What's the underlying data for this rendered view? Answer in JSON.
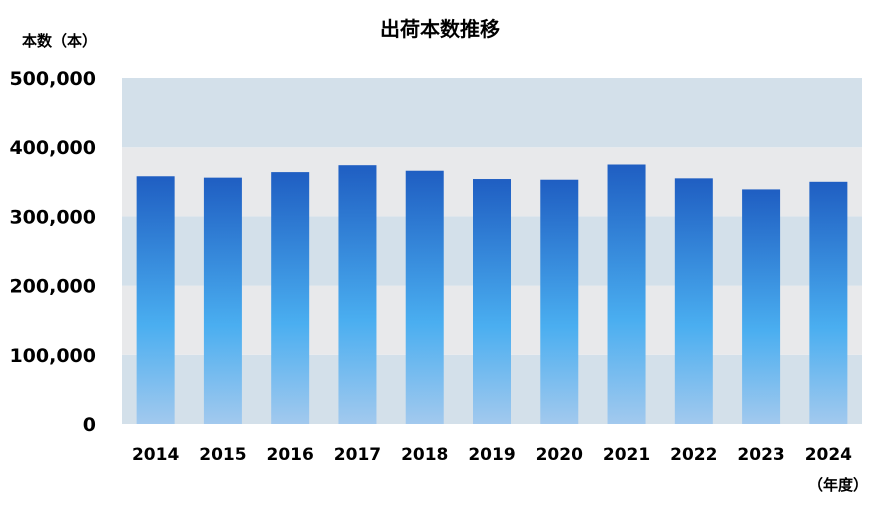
{
  "chart_data": {
    "type": "bar",
    "title": "出荷本数推移",
    "ylabel": "本数（本）",
    "xlabel": "（年度）",
    "categories": [
      "2014",
      "2015",
      "2016",
      "2017",
      "2018",
      "2019",
      "2020",
      "2021",
      "2022",
      "2023",
      "2024"
    ],
    "values": [
      358000,
      356000,
      364000,
      374000,
      366000,
      354000,
      353000,
      375000,
      355000,
      339000,
      350000
    ],
    "ylim": [
      0,
      500000
    ],
    "yticks": [
      "0",
      "100,000",
      "200,000",
      "300,000",
      "400,000",
      "500,000"
    ],
    "legend": "none",
    "grid": "alternating horizontal bands",
    "colors": {
      "band_light": "#e8e9eb",
      "band_blue": "#d3e0ea",
      "bar_top": "#1f5ec2",
      "bar_mid": "#4aaef0",
      "bar_bottom": "#a2c9ee"
    }
  }
}
